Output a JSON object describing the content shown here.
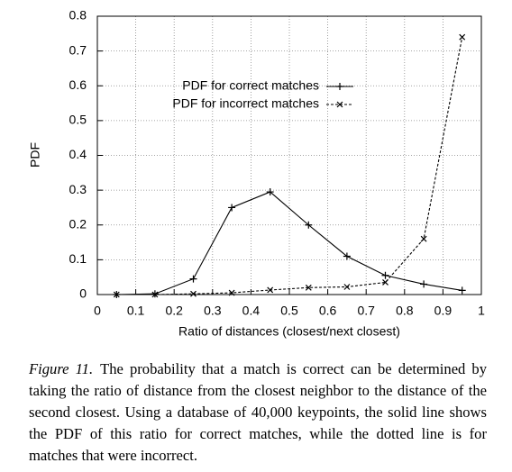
{
  "chart_data": {
    "type": "line",
    "xlabel": "Ratio of distances (closest/next closest)",
    "ylabel": "PDF",
    "x": [
      0.05,
      0.15,
      0.25,
      0.35,
      0.45,
      0.55,
      0.65,
      0.75,
      0.85,
      0.95
    ],
    "series": [
      {
        "name": "PDF for correct matches",
        "color": "#000000",
        "marker": "+",
        "dashed": false,
        "values": [
          0,
          0.002,
          0.045,
          0.25,
          0.295,
          0.2,
          0.11,
          0.055,
          0.03,
          0.012
        ]
      },
      {
        "name": "PDF for incorrect matches",
        "color": "#000000",
        "marker": "x",
        "dashed": true,
        "values": [
          0,
          0,
          0.002,
          0.005,
          0.013,
          0.02,
          0.022,
          0.035,
          0.16,
          0.74
        ]
      }
    ],
    "xlim": [
      0,
      1
    ],
    "xticks": [
      0,
      0.1,
      0.2,
      0.3,
      0.4,
      0.5,
      0.6,
      0.7,
      0.8,
      0.9,
      1
    ],
    "ylim": [
      0,
      0.8
    ],
    "yticks": [
      0,
      0.1,
      0.2,
      0.3,
      0.4,
      0.5,
      0.6,
      0.7,
      0.8
    ],
    "grid": true,
    "legend": "top"
  },
  "caption": {
    "label": "Figure 11.",
    "text": "The probability that a match is correct can be determined by taking the ratio of distance from the closest neighbor to the distance of the second closest. Using a database of 40,000 keypoints, the solid line shows the PDF of this ratio for correct matches, while the dotted line is for matches that were incorrect."
  }
}
